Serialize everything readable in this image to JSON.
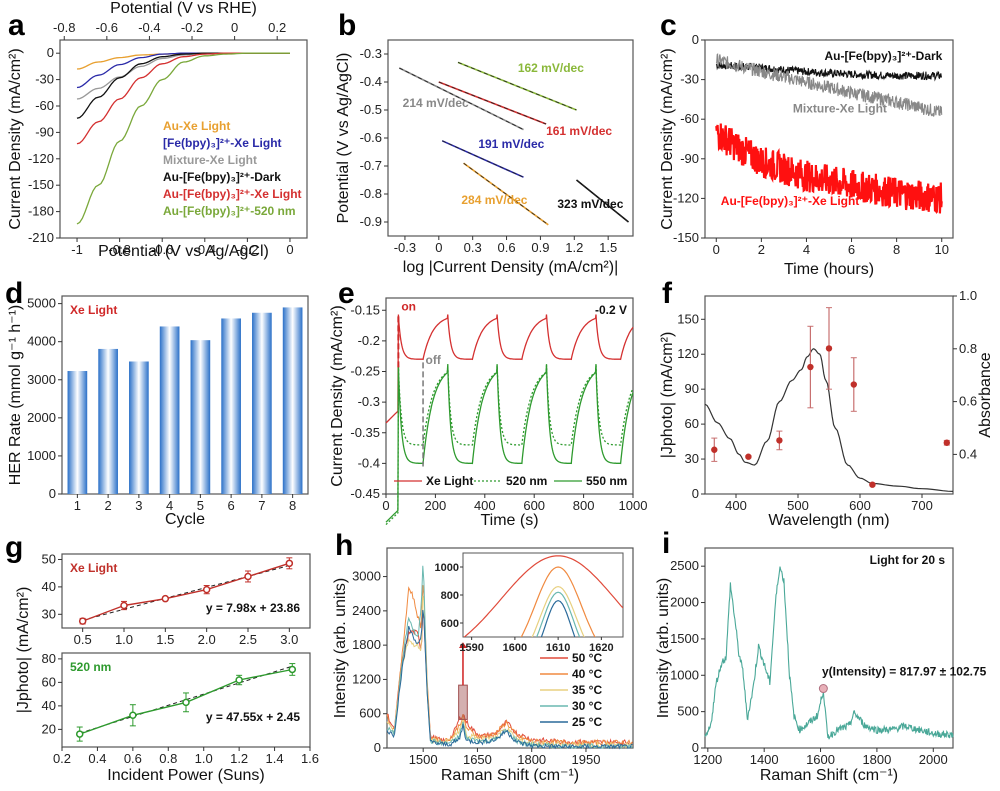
{
  "chart_data": [
    {
      "panel": "a",
      "type": "line",
      "xlabel": "Potential (V vs Ag/AgCl)",
      "x2label": "Potential (V vs RHE)",
      "ylabel": "Current Density (mA/cm²)",
      "xlim": [
        -1.08,
        0.08
      ],
      "ylim": [
        -210,
        15
      ],
      "xticks": [
        -1.0,
        -0.8,
        -0.6,
        -0.4,
        -0.2,
        0.0
      ],
      "x2ticks": [
        -0.8,
        -0.6,
        -0.4,
        -0.2,
        0.0,
        0.2
      ],
      "yticks": [
        0,
        -30,
        -60,
        -90,
        -120,
        -150,
        -180,
        -210
      ],
      "series": [
        {
          "name": "Au-Xe Light",
          "color": "#e8a030",
          "x": [
            -1.0,
            -0.9,
            -0.8,
            -0.7,
            -0.6,
            -0.5,
            -0.4,
            -0.3,
            0.0
          ],
          "y": [
            -18,
            -10,
            -5,
            -2,
            -1,
            -0.5,
            0,
            0,
            0
          ]
        },
        {
          "name": "[Fe(bpy)3]2+-Xe Light",
          "color": "#2a2aa8",
          "x": [
            -1.0,
            -0.9,
            -0.8,
            -0.7,
            -0.6,
            -0.5,
            -0.4,
            0.0
          ],
          "y": [
            -39,
            -25,
            -13,
            -5,
            -1,
            0,
            0,
            0
          ]
        },
        {
          "name": "Mixture-Xe Light",
          "color": "#999999",
          "x": [
            -1.0,
            -0.9,
            -0.8,
            -0.7,
            -0.6,
            -0.5,
            -0.4,
            0.0
          ],
          "y": [
            -52,
            -40,
            -27,
            -15,
            -6,
            -2,
            0,
            0
          ]
        },
        {
          "name": "Au-[Fe(bpy)3]2+-Dark",
          "color": "#111111",
          "x": [
            -1.0,
            -0.9,
            -0.8,
            -0.7,
            -0.6,
            -0.5,
            -0.4,
            0.0
          ],
          "y": [
            -74,
            -50,
            -28,
            -12,
            -4,
            -1,
            0,
            0
          ]
        },
        {
          "name": "Au-[Fe(bpy)3]2+-Xe Light",
          "color": "#d43030",
          "x": [
            -1.0,
            -0.9,
            -0.8,
            -0.7,
            -0.6,
            -0.5,
            -0.4,
            -0.3,
            0.0
          ],
          "y": [
            -103,
            -78,
            -52,
            -28,
            -12,
            -4,
            -1,
            0,
            0
          ]
        },
        {
          "name": "Au-[Fe(bpy)3]2+-520 nm",
          "color": "#7aa83a",
          "x": [
            -1.0,
            -0.9,
            -0.8,
            -0.7,
            -0.6,
            -0.5,
            -0.4,
            -0.3,
            -0.2,
            0.0
          ],
          "y": [
            -194,
            -150,
            -100,
            -60,
            -30,
            -10,
            -3,
            -1,
            0,
            0
          ]
        }
      ],
      "legend_position": "bottom-right"
    },
    {
      "panel": "b",
      "type": "line",
      "xlabel": "log |Current Density (mA/cm²)|",
      "ylabel": "Potential (V vs Ag/AgCl)",
      "xlim": [
        -0.45,
        1.72
      ],
      "ylim": [
        -0.95,
        -0.25
      ],
      "xticks": [
        -0.3,
        0.0,
        0.3,
        0.6,
        0.9,
        1.2,
        1.5
      ],
      "yticks": [
        -0.3,
        -0.4,
        -0.5,
        -0.6,
        -0.7,
        -0.8,
        -0.9
      ],
      "series": [
        {
          "name": "162 mV/dec",
          "color": "#8ab83a",
          "x": [
            0.17,
            1.22
          ],
          "y": [
            -0.33,
            -0.5
          ]
        },
        {
          "name": "214 mV/dec",
          "color": "#888888",
          "x": [
            -0.35,
            0.75
          ],
          "y": [
            -0.35,
            -0.57
          ]
        },
        {
          "name": "161 mV/dec",
          "color": "#d43030",
          "x": [
            0.0,
            0.95
          ],
          "y": [
            -0.4,
            -0.55
          ]
        },
        {
          "name": "191 mV/dec",
          "color": "#2a2aa8",
          "x": [
            0.03,
            0.75
          ],
          "y": [
            -0.61,
            -0.74
          ]
        },
        {
          "name": "284 mV/dec",
          "color": "#e8a030",
          "x": [
            0.22,
            0.97
          ],
          "y": [
            -0.69,
            -0.91
          ]
        },
        {
          "name": "323 mV/dec",
          "color": "#111111",
          "x": [
            1.22,
            1.68
          ],
          "y": [
            -0.75,
            -0.9
          ]
        }
      ]
    },
    {
      "panel": "c",
      "type": "line",
      "xlabel": "Time (hours)",
      "ylabel": "Current Density (mA/cm²)",
      "xlim": [
        -0.5,
        10.5
      ],
      "ylim": [
        -150,
        0
      ],
      "xticks": [
        0,
        2,
        4,
        6,
        8,
        10
      ],
      "yticks": [
        0,
        -30,
        -60,
        -90,
        -120,
        -150
      ],
      "series": [
        {
          "name": "Au-[Fe(bpy)3]2+-Dark",
          "color": "#111111",
          "x": [
            0,
            2,
            4,
            6,
            8,
            10
          ],
          "y": [
            -19,
            -21,
            -24,
            -26,
            -27,
            -27
          ]
        },
        {
          "name": "Mixture-Xe Light",
          "color": "#888888",
          "x": [
            0,
            2,
            4,
            6,
            8,
            10
          ],
          "y": [
            -15,
            -24,
            -32,
            -40,
            -47,
            -55
          ]
        },
        {
          "name": "Au-[Fe(bpy)3]2+-Xe Light",
          "color": "#ff1010",
          "x": [
            0,
            1,
            2,
            4,
            6,
            8,
            10
          ],
          "y": [
            -70,
            -82,
            -92,
            -103,
            -110,
            -116,
            -120
          ]
        }
      ]
    },
    {
      "panel": "d",
      "type": "bar",
      "xlabel": "Cycle",
      "ylabel": "HER Rate (mmol g⁻¹ h⁻¹)",
      "title": "Xe Light",
      "categories": [
        "1",
        "2",
        "3",
        "4",
        "5",
        "6",
        "7",
        "8"
      ],
      "values": [
        3230,
        3810,
        3480,
        4400,
        4040,
        4610,
        4760,
        4900
      ],
      "ylim": [
        0,
        5200
      ],
      "yticks": [
        0,
        1000,
        2000,
        3000,
        4000,
        5000
      ]
    },
    {
      "panel": "e",
      "type": "line",
      "xlabel": "Time (s)",
      "ylabel": "Current Density (mA/cm²)",
      "xlim": [
        0,
        1000
      ],
      "ylim": [
        -0.45,
        -0.13
      ],
      "xticks": [
        0,
        200,
        400,
        600,
        800,
        1000
      ],
      "yticks": [
        -0.15,
        -0.2,
        -0.25,
        -0.3,
        -0.35,
        -0.4,
        -0.45
      ],
      "annotations": [
        "on",
        "off",
        "-0.2 V"
      ],
      "period_s": 200,
      "on_times_s": [
        50,
        250,
        450,
        650,
        850
      ],
      "series": [
        {
          "name": "Xe Light",
          "color": "#d43030",
          "style": "solid",
          "light_level": -0.157,
          "dark_level": -0.23
        },
        {
          "name": "520 nm",
          "color": "#2e9a2e",
          "style": "dashed",
          "light_level": -0.24,
          "dark_level": -0.37
        },
        {
          "name": "550 nm",
          "color": "#2e9a2e",
          "style": "solid",
          "light_level": -0.238,
          "dark_level": -0.4
        }
      ]
    },
    {
      "panel": "f",
      "type": "scatter",
      "xlabel": "Wavelength (nm)",
      "ylabel": "|Jphoto| (mA/cm²)",
      "y2label": "Absorbance",
      "xlim": [
        350,
        750
      ],
      "ylim": [
        0,
        170
      ],
      "y2lim": [
        0.25,
        1.0
      ],
      "xticks": [
        400,
        500,
        600,
        700
      ],
      "yticks": [
        0,
        30,
        60,
        90,
        120,
        150
      ],
      "y2ticks": [
        0.4,
        0.6,
        0.8,
        1.0
      ],
      "points": {
        "x": [
          365,
          420,
          470,
          520,
          550,
          590,
          620,
          740
        ],
        "y": [
          38,
          32,
          46,
          109,
          125,
          94,
          8,
          44
        ],
        "err": [
          10,
          1,
          8,
          35,
          35,
          23,
          1,
          2
        ],
        "color": "#c0302a"
      },
      "absorbance": {
        "color": "#333333",
        "x": [
          350,
          370,
          390,
          405,
          415,
          430,
          450,
          470,
          490,
          505,
          515,
          525,
          535,
          545,
          560,
          580,
          600,
          620,
          660,
          700,
          750
        ],
        "y": [
          0.59,
          0.52,
          0.46,
          0.4,
          0.37,
          0.36,
          0.45,
          0.6,
          0.68,
          0.72,
          0.77,
          0.8,
          0.78,
          0.68,
          0.5,
          0.36,
          0.31,
          0.29,
          0.28,
          0.27,
          0.26
        ]
      }
    },
    {
      "panel": "g",
      "type": "line",
      "xlabel": "Incident Power (Suns)",
      "ylabel": "|Jphoto| (mA/cm²)",
      "subplots": [
        {
          "title": "Xe Light",
          "color": "#c0302a",
          "x": [
            0.5,
            1.0,
            1.5,
            2.0,
            2.5,
            3.0
          ],
          "y": [
            27.5,
            33.2,
            35.7,
            39.0,
            43.8,
            48.6
          ],
          "err": [
            1,
            1.5,
            0.5,
            1.5,
            2,
            2
          ],
          "fit": "y = 7.98x + 23.86",
          "slope": 7.98,
          "intercept": 23.86,
          "xlim": [
            0.25,
            3.25
          ],
          "ylim": [
            25,
            52
          ],
          "xticks": [
            0.5,
            1.0,
            1.5,
            2.0,
            2.5,
            3.0
          ],
          "yticks": [
            30,
            40,
            50
          ]
        },
        {
          "title": "520 nm",
          "color": "#2e9a2e",
          "x": [
            0.3,
            0.6,
            0.9,
            1.2,
            1.5
          ],
          "y": [
            16,
            32,
            43,
            62,
            71
          ],
          "err": [
            6,
            9,
            8,
            4,
            5
          ],
          "fit": "y = 47.55x + 2.45",
          "slope": 47.55,
          "intercept": 2.45,
          "xlim": [
            0.2,
            1.6
          ],
          "ylim": [
            5,
            85
          ],
          "xticks": [
            0.2,
            0.4,
            0.6,
            0.8,
            1.0,
            1.2,
            1.4,
            1.6
          ],
          "yticks": [
            20,
            40,
            60,
            80
          ]
        }
      ]
    },
    {
      "panel": "h",
      "type": "line",
      "xlabel": "Raman Shift (cm⁻¹)",
      "ylabel": "Intensity (arb. units)",
      "xlim": [
        1400,
        2080
      ],
      "ylim": [
        0,
        3500
      ],
      "xticks": [
        1500,
        1650,
        1800,
        1950
      ],
      "yticks": [
        0,
        600,
        1200,
        1800,
        2400,
        3000
      ],
      "series": [
        {
          "name": "50 °C",
          "color": "#e04a3a"
        },
        {
          "name": "40 °C",
          "color": "#f08a40"
        },
        {
          "name": "35 °C",
          "color": "#e8d080"
        },
        {
          "name": "30 °C",
          "color": "#6ab8b0"
        },
        {
          "name": "25 °C",
          "color": "#2a6a9a"
        }
      ],
      "inset": {
        "xlim": [
          1588,
          1625
        ],
        "ylim": [
          500,
          1100
        ],
        "xticks": [
          1590,
          1600,
          1610,
          1620
        ],
        "yticks": [
          600,
          800,
          1000
        ],
        "peaks": [
          1080,
          1000,
          860,
          820,
          760
        ]
      }
    },
    {
      "panel": "i",
      "type": "line",
      "xlabel": "Raman Shift (cm⁻¹)",
      "ylabel": "Intensity (arb. units)",
      "xlim": [
        1190,
        2070
      ],
      "ylim": [
        0,
        2750
      ],
      "xticks": [
        1200,
        1400,
        1600,
        1800,
        2000
      ],
      "yticks": [
        0,
        500,
        1000,
        1500,
        2000,
        2500
      ],
      "color": "#4aa898",
      "annotation": "Light for 20 s",
      "marker": {
        "x": 1610,
        "y": 818,
        "label": "y_Intensity = 817.97 ± 102.75"
      },
      "x": [
        1190,
        1210,
        1230,
        1250,
        1265,
        1280,
        1295,
        1310,
        1325,
        1340,
        1360,
        1380,
        1400,
        1420,
        1440,
        1455,
        1470,
        1490,
        1505,
        1525,
        1560,
        1590,
        1610,
        1625,
        1660,
        1700,
        1720,
        1760,
        1800,
        1850,
        1900,
        1950,
        2000,
        2070
      ],
      "y": [
        120,
        300,
        900,
        1180,
        1250,
        2250,
        1800,
        1300,
        1050,
        400,
        800,
        1400,
        1150,
        900,
        2000,
        2500,
        2300,
        1000,
        450,
        250,
        350,
        450,
        800,
        150,
        250,
        300,
        480,
        300,
        250,
        250,
        300,
        250,
        200,
        180
      ]
    }
  ]
}
